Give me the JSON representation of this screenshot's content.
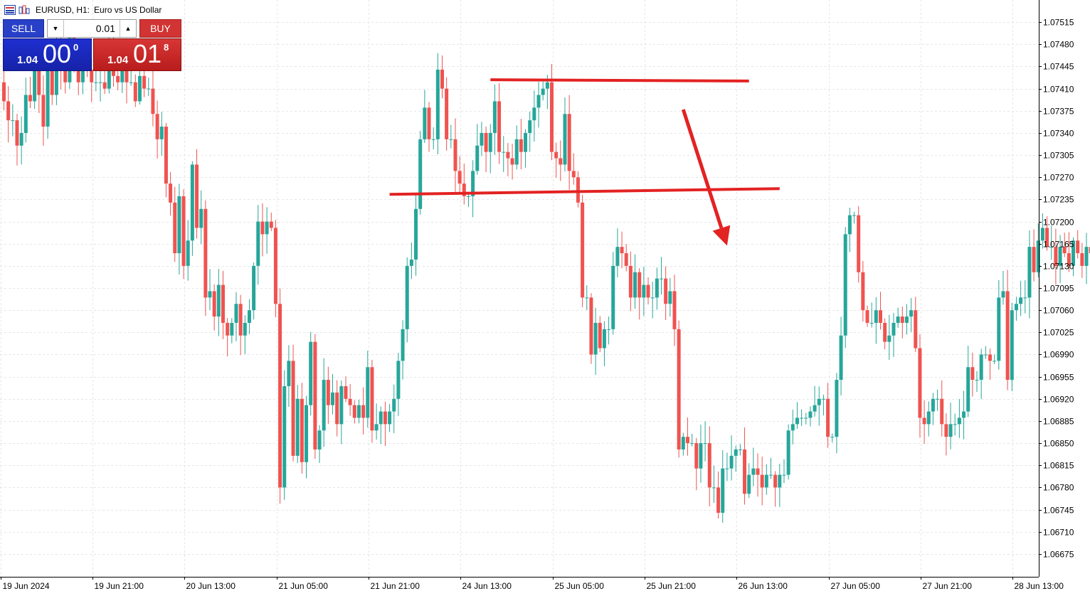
{
  "header": {
    "symbol_label": "EURUSD, H1:",
    "description": "Euro vs US Dollar"
  },
  "trade_panel": {
    "sell_label": "SELL",
    "buy_label": "BUY",
    "lot_value": "0.01",
    "sell_price": {
      "prefix": "1.04",
      "big": "00",
      "sup": "0"
    },
    "buy_price": {
      "prefix": "1.04",
      "big": "01",
      "sup": "8"
    }
  },
  "colors": {
    "bull": "#26a69a",
    "bear": "#ef5350",
    "annotation": "#e32222",
    "grid": "#e6e6e6",
    "sell_bg": "#1e2fd0",
    "buy_bg": "#d23434"
  },
  "chart_data": {
    "type": "candlestick",
    "symbol": "EURUSD",
    "timeframe": "H1",
    "y_range": [
      1.0664,
      1.0755
    ],
    "y_ticks": [
      "1.07515",
      "1.07480",
      "1.07445",
      "1.07410",
      "1.07375",
      "1.07340",
      "1.07305",
      "1.07270",
      "1.07235",
      "1.07200",
      "1.07165",
      "1.07130",
      "1.07095",
      "1.07060",
      "1.07025",
      "1.06990",
      "1.06955",
      "1.06920",
      "1.06885",
      "1.06850",
      "1.06815",
      "1.06780",
      "1.06745",
      "1.06710",
      "1.06675"
    ],
    "x_ticks": [
      {
        "index": 0,
        "label": "19 Jun 2024"
      },
      {
        "index": 21,
        "label": "19 Jun 21:00"
      },
      {
        "index": 42,
        "label": "20 Jun 13:00"
      },
      {
        "index": 63,
        "label": "21 Jun 05:00"
      },
      {
        "index": 84,
        "label": "21 Jun 21:00"
      },
      {
        "index": 105,
        "label": "24 Jun 13:00"
      },
      {
        "index": 126,
        "label": "25 Jun 05:00"
      },
      {
        "index": 147,
        "label": "25 Jun 21:00"
      },
      {
        "index": 168,
        "label": "26 Jun 13:00"
      },
      {
        "index": 189,
        "label": "27 Jun 05:00"
      },
      {
        "index": 210,
        "label": "27 Jun 21:00"
      },
      {
        "index": 231,
        "label": "28 Jun 13:00"
      }
    ],
    "closes": [
      1.0739,
      1.0736,
      1.0736,
      1.0732,
      1.0734,
      1.074,
      1.0739,
      1.0745,
      1.074,
      1.0735,
      1.0745,
      1.074,
      1.0748,
      1.0744,
      1.0742,
      1.0749,
      1.0745,
      1.0742,
      1.0745,
      1.0744,
      1.0742,
      1.0742,
      1.0742,
      1.0741,
      1.0747,
      1.0743,
      1.0742,
      1.0747,
      1.0742,
      1.0742,
      1.0739,
      1.0743,
      1.0741,
      1.0741,
      1.0737,
      1.0733,
      1.0735,
      1.0726,
      1.0723,
      1.0715,
      1.0724,
      1.0713,
      1.0717,
      1.0729,
      1.0719,
      1.0722,
      1.0708,
      1.0709,
      1.0705,
      1.071,
      1.0704,
      1.0702,
      1.0704,
      1.0707,
      1.0702,
      1.0704,
      1.0706,
      1.0713,
      1.072,
      1.0718,
      1.072,
      1.0719,
      1.0707,
      1.0678,
      1.0694,
      1.0698,
      1.0683,
      1.0692,
      1.0682,
      1.0691,
      1.0701,
      1.0684,
      1.0687,
      1.0695,
      1.0691,
      1.0693,
      1.0688,
      1.0694,
      1.0692,
      1.0691,
      1.0689,
      1.0691,
      1.0689,
      1.0697,
      1.0687,
      1.0688,
      1.069,
      1.0688,
      1.069,
      1.0692,
      1.0698,
      1.0703,
      1.0713,
      1.0714,
      1.0722,
      1.0733,
      1.0738,
      1.0733,
      1.0733,
      1.0744,
      1.0741,
      1.0733,
      1.0733,
      1.0728,
      1.0726,
      1.0724,
      1.0724,
      1.0728,
      1.0732,
      1.0734,
      1.0731,
      1.0734,
      1.0739,
      1.0731,
      1.0731,
      1.073,
      1.0729,
      1.0733,
      1.0731,
      1.0734,
      1.0736,
      1.0738,
      1.074,
      1.0741,
      1.0742,
      1.0731,
      1.073,
      1.0729,
      1.0737,
      1.0728,
      1.0727,
      1.0723,
      1.0708,
      1.0708,
      1.0699,
      1.0704,
      1.07,
      1.0703,
      1.0703,
      1.0713,
      1.0716,
      1.0715,
      1.0713,
      1.0708,
      1.0712,
      1.0708,
      1.071,
      1.0708,
      1.0708,
      1.0711,
      1.0711,
      1.0707,
      1.0709,
      1.0703,
      1.0684,
      1.0686,
      1.0685,
      1.0685,
      1.0681,
      1.0685,
      1.0685,
      1.0678,
      1.0678,
      1.0674,
      1.0681,
      1.0681,
      1.0683,
      1.0684,
      1.0684,
      1.0677,
      1.068,
      1.0681,
      1.068,
      1.0678,
      1.068,
      1.068,
      1.0678,
      1.068,
      1.068,
      1.0687,
      1.0688,
      1.0689,
      1.0689,
      1.0689,
      1.069,
      1.0691,
      1.0692,
      1.0692,
      1.0686,
      1.0686,
      1.0695,
      1.0702,
      1.0718,
      1.0721,
      1.0721,
      1.0712,
      1.0706,
      1.0704,
      1.0704,
      1.0706,
      1.0704,
      1.0701,
      1.0702,
      1.0704,
      1.0705,
      1.0704,
      1.0705,
      1.0706,
      1.07,
      1.0689,
      1.0688,
      1.069,
      1.0692,
      1.0692,
      1.0688,
      1.0686,
      1.0688,
      1.0688,
      1.0689,
      1.069,
      1.0697,
      1.0695,
      1.0695,
      1.0699,
      1.0699,
      1.0698,
      1.0698,
      1.0708,
      1.0709,
      1.0695,
      1.0706,
      1.0707,
      1.0708,
      1.0708,
      1.0716,
      1.0712,
      1.0717,
      1.0719,
      1.0716,
      1.0716,
      1.0713,
      1.0716,
      1.0715,
      1.0713,
      1.0717,
      1.0715,
      1.0713,
      1.0716,
      1.0715,
      1.0713,
      1.0714
    ]
  },
  "annotations": [
    {
      "type": "trendline",
      "from": [
        111,
        1.07424
      ],
      "to": [
        170,
        1.07422
      ]
    },
    {
      "type": "trendline",
      "from": [
        88,
        1.07243
      ],
      "to": [
        177,
        1.07252
      ]
    },
    {
      "type": "arrow",
      "from": [
        155,
        1.07377
      ],
      "to": [
        165,
        1.07162
      ]
    }
  ]
}
